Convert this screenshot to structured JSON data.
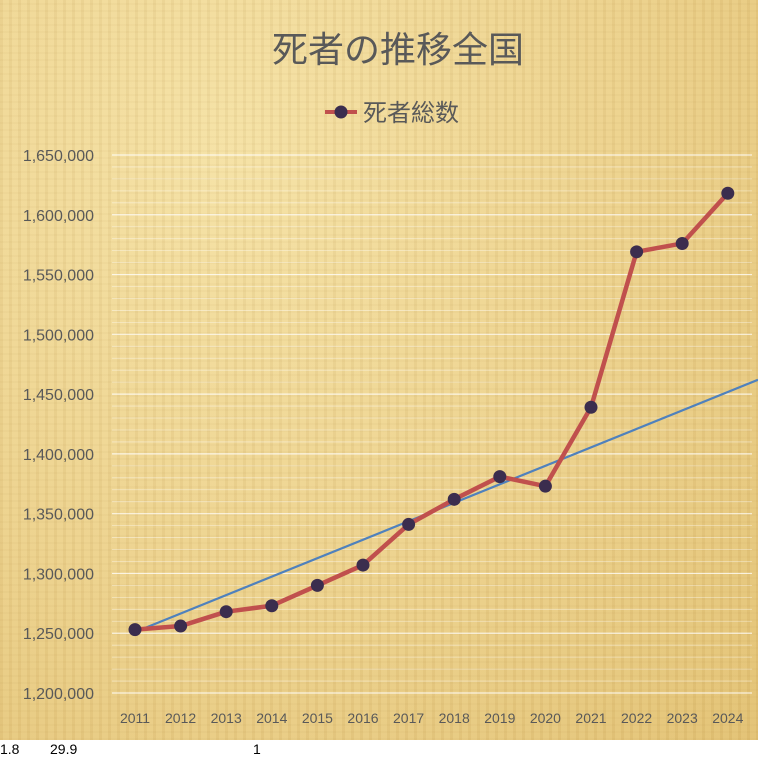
{
  "chart_data": {
    "type": "line",
    "title": "死者の推移全国",
    "legend": {
      "placement": "top-center",
      "entries": [
        "死者総数"
      ]
    },
    "categories": [
      "2011",
      "2012",
      "2013",
      "2014",
      "2015",
      "2016",
      "2017",
      "2018",
      "2019",
      "2020",
      "2021",
      "2022",
      "2023",
      "2024"
    ],
    "series": [
      {
        "name": "死者総数",
        "color": "#c0504d",
        "marker_color": "#3b2d4e",
        "values": [
          1253000,
          1256000,
          1268000,
          1273000,
          1290000,
          1307000,
          1341000,
          1362000,
          1381000,
          1373000,
          1439000,
          1569000,
          1576000,
          1618000
        ]
      }
    ],
    "trendline": {
      "type": "linear",
      "color": "#4f81bd",
      "start_value": 1251000,
      "end_value": 1462000,
      "extends_past_last_category": true
    },
    "ylim": [
      1200000,
      1650000
    ],
    "yticks": [
      1200000,
      1250000,
      1300000,
      1350000,
      1400000,
      1450000,
      1500000,
      1550000,
      1600000,
      1650000
    ],
    "ytick_labels": [
      "1,200,000",
      "1,250,000",
      "1,300,000",
      "1,350,000",
      "1,400,000",
      "1,450,000",
      "1,500,000",
      "1,550,000",
      "1,600,000",
      "1,650,000"
    ],
    "grid": true,
    "xlabel": "",
    "ylabel": ""
  },
  "footer": {
    "left": "1.8",
    "middle": "29.9",
    "right": "1"
  }
}
